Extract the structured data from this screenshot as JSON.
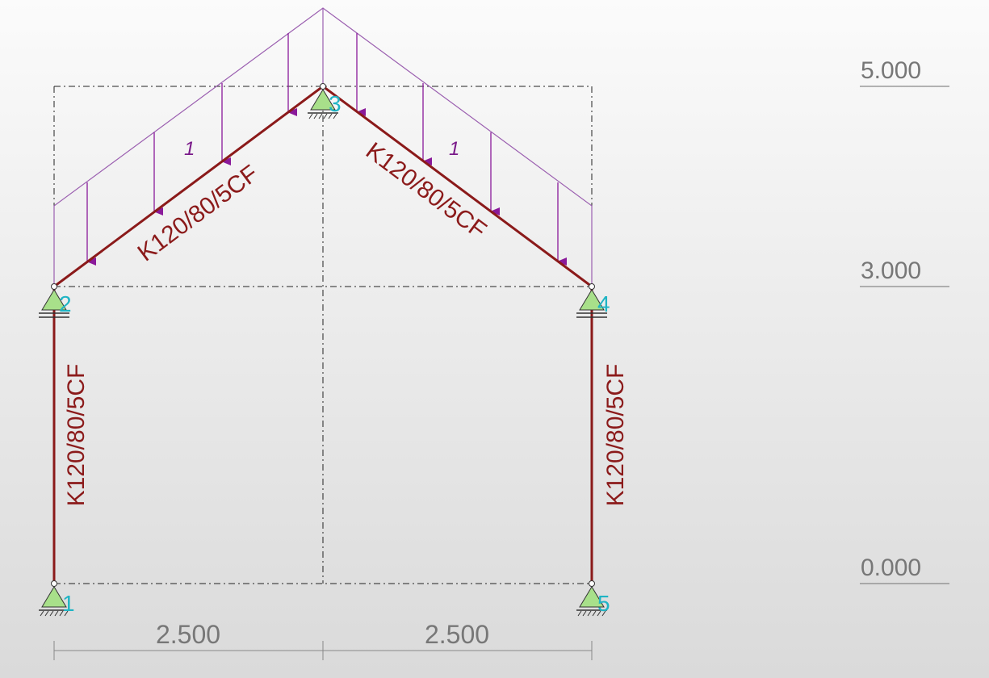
{
  "levels": [
    {
      "label": "5.000"
    },
    {
      "label": "3.000"
    },
    {
      "label": "0.000"
    }
  ],
  "spans": [
    {
      "label": "2.500"
    },
    {
      "label": "2.500"
    }
  ],
  "nodes": [
    {
      "id": "1"
    },
    {
      "id": "2"
    },
    {
      "id": "3"
    },
    {
      "id": "4"
    },
    {
      "id": "5"
    }
  ],
  "members": [
    {
      "section": "K120/80/5CF"
    },
    {
      "section": "K120/80/5CF"
    },
    {
      "section": "K120/80/5CF"
    },
    {
      "section": "K120/80/5CF"
    }
  ],
  "loads": [
    {
      "label": "1"
    },
    {
      "label": "1"
    }
  ],
  "colors": {
    "member": "#8b1a1a",
    "load": "#8a1a9a",
    "load_outline": "#9b5fb0",
    "node_label": "#1fb4c4",
    "support": "#a8e08a",
    "grid": "#222222",
    "dimension": "#888888"
  }
}
